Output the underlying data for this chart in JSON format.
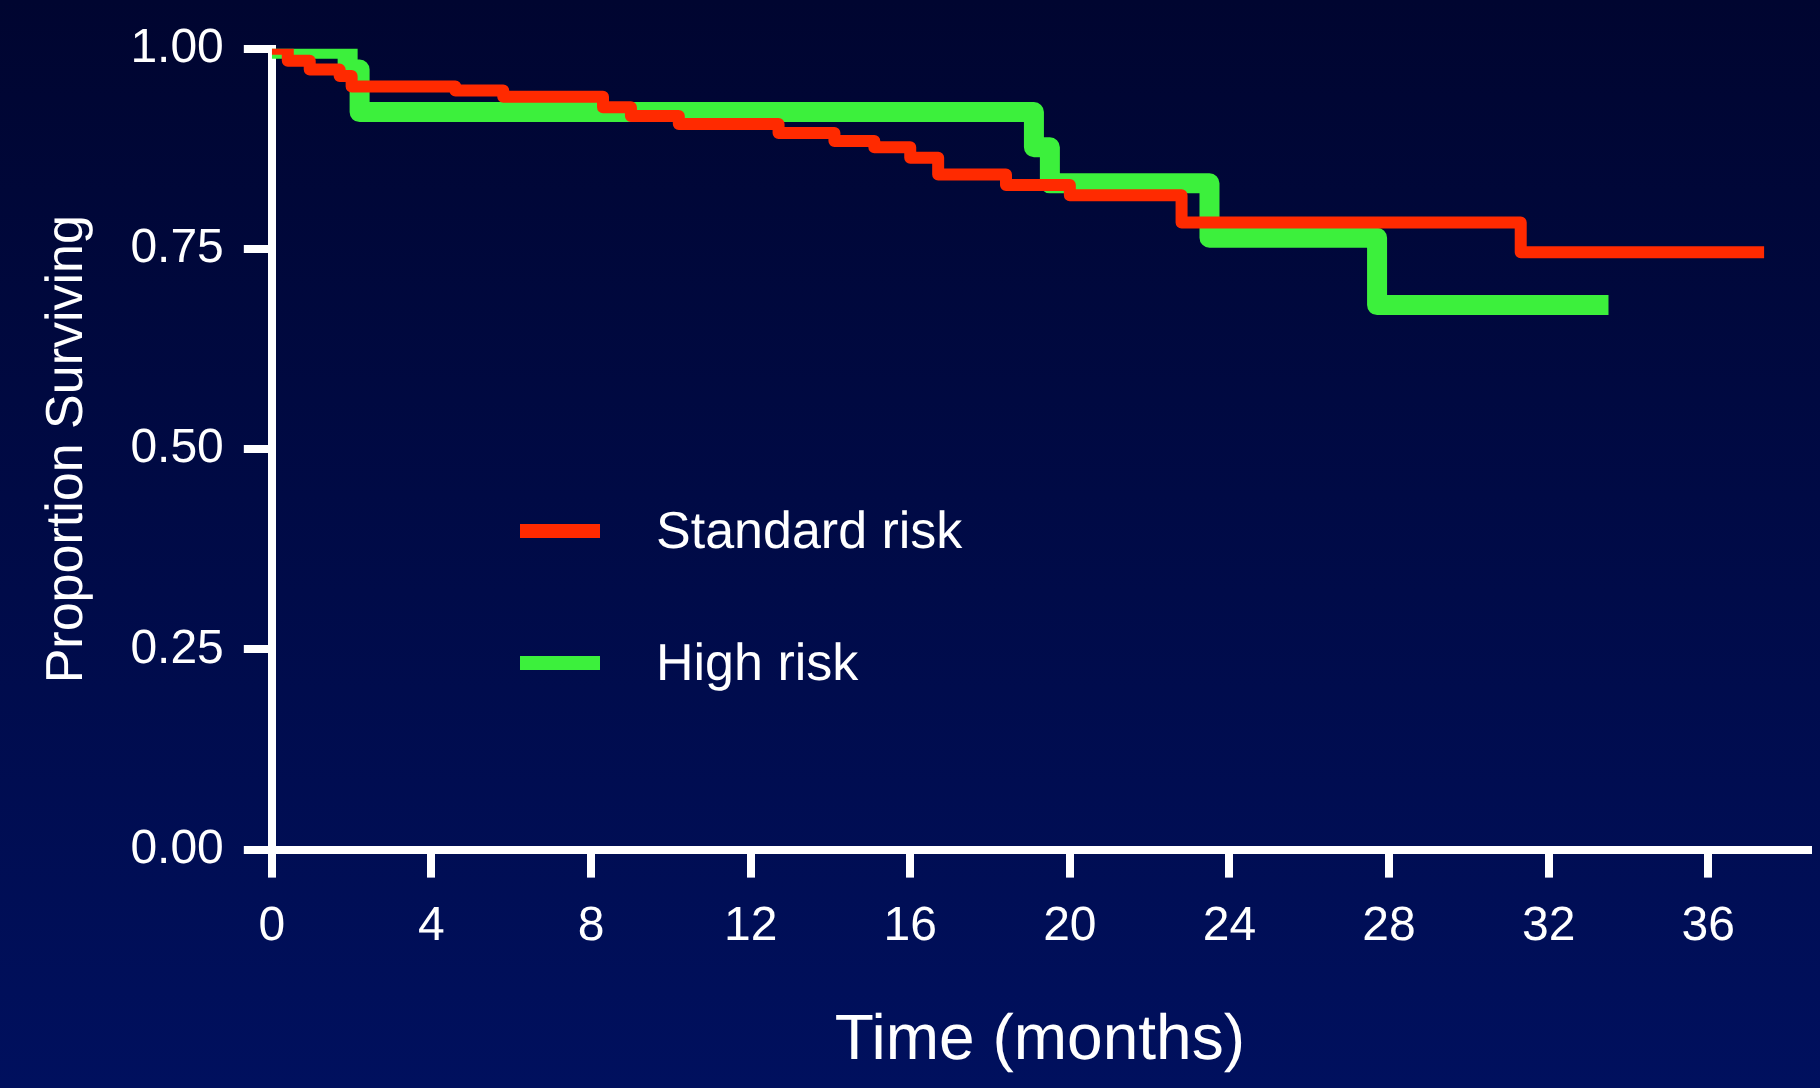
{
  "chart_data": {
    "type": "step",
    "xlabel": "Time (months)",
    "ylabel": "Proportion Surviving",
    "xlim": [
      0,
      38.5
    ],
    "xticks": [
      0,
      4,
      8,
      12,
      16,
      20,
      24,
      28,
      32,
      36
    ],
    "ylim": [
      0,
      1
    ],
    "yticks": [
      {
        "value": 0,
        "label": "0.00"
      },
      {
        "value": 0.25,
        "label": "0.25"
      },
      {
        "value": 0.5,
        "label": "0.50"
      },
      {
        "value": 0.75,
        "label": "0.75"
      },
      {
        "value": 1,
        "label": "1.00"
      }
    ],
    "grid": false,
    "legend": "center left",
    "marker": "none",
    "line_style": "solid",
    "series": [
      {
        "name": "Standard risk",
        "color": "#ff2a00",
        "x": [
          0,
          0.4,
          0.95,
          1.7,
          2.0,
          4.6,
          5.8,
          8.3,
          9.0,
          10.2,
          12.7,
          14.1,
          15.1,
          16.0,
          16.7,
          18.4,
          20.0,
          22.8,
          31.3,
          37.4
        ],
        "values": [
          1.0,
          0.985,
          0.974,
          0.966,
          0.953,
          0.948,
          0.94,
          0.927,
          0.916,
          0.906,
          0.895,
          0.885,
          0.877,
          0.864,
          0.843,
          0.83,
          0.817,
          0.783,
          0.746,
          0.746
        ]
      },
      {
        "name": "High risk",
        "color": "#3cf03c",
        "x": [
          0,
          1.9,
          2.2,
          19.1,
          19.5,
          23.5,
          27.7,
          33.5
        ],
        "values": [
          1.0,
          0.974,
          0.921,
          0.877,
          0.832,
          0.764,
          0.68,
          0.68
        ]
      }
    ]
  }
}
